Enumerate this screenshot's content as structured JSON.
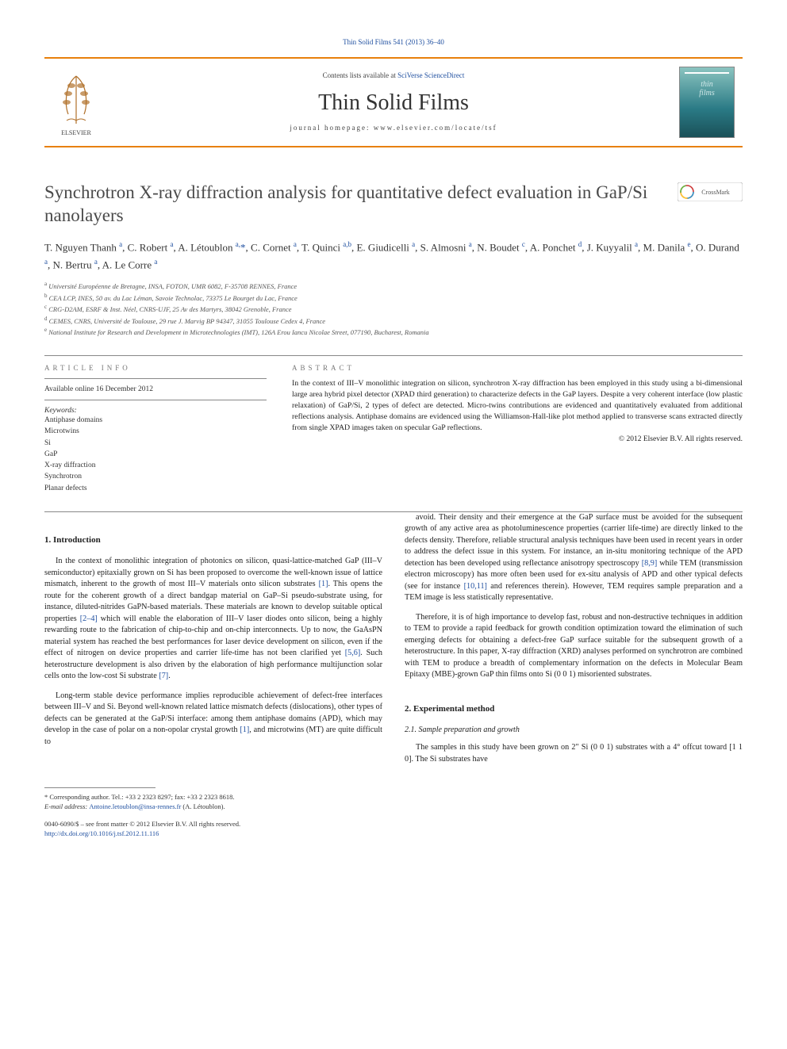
{
  "header": {
    "top_link": "Thin Solid Films 541 (2013) 36–40",
    "contents_prefix": "Contents lists available at ",
    "contents_link": "SciVerse ScienceDirect",
    "journal_title": "Thin Solid Films",
    "homepage_label": "journal homepage: www.elsevier.com/locate/tsf"
  },
  "article": {
    "title": "Synchrotron X-ray diffraction analysis for quantitative defect evaluation in GaP/Si nanolayers",
    "crossmark_label": "CrossMark"
  },
  "authors_html": "T. Nguyen Thanh <sup>a</sup>, C. Robert <sup>a</sup>, A. Létoublon <sup>a,</sup><span class='star'>*</span>, C. Cornet <sup>a</sup>, T. Quinci <sup>a,b</sup>, E. Giudicelli <sup>a</sup>, S. Almosni <sup>a</sup>, N. Boudet <sup>c</sup>, A. Ponchet <sup>d</sup>, J. Kuyyalil <sup>a</sup>, M. Danila <sup>e</sup>, O. Durand <sup>a</sup>, N. Bertru <sup>a</sup>, A. Le Corre <sup>a</sup>",
  "affiliations": [
    {
      "sup": "a",
      "text": "Université Européenne de Bretagne, INSA, FOTON, UMR 6082, F-35708 RENNES, France"
    },
    {
      "sup": "b",
      "text": "CEA LCP, INES, 50 av. du Lac Léman, Savoie Technolac, 73375 Le Bourget du Lac, France"
    },
    {
      "sup": "c",
      "text": "CRG-D2AM, ESRF & Inst. Néel, CNRS-UJF, 25 Av des Martyrs, 38042 Grenoble, France"
    },
    {
      "sup": "d",
      "text": "CEMES, CNRS, Université de Toulouse, 29 rue J. Marvig BP 94347, 31055 Toulouse Cedex 4, France"
    },
    {
      "sup": "e",
      "text": "National Institute for Research and Development in Microtechnologies (IMT), 126A Erou Iancu Nicolae Street, 077190, Bucharest, Romania"
    }
  ],
  "info": {
    "article_info_head": "ARTICLE INFO",
    "available": "Available online 16 December 2012",
    "keywords_head": "Keywords:",
    "keywords": [
      "Antiphase domains",
      "Microtwins",
      "Si",
      "GaP",
      "X-ray diffraction",
      "Synchrotron",
      "Planar defects"
    ]
  },
  "abstract": {
    "head": "ABSTRACT",
    "body": "In the context of III–V monolithic integration on silicon, synchrotron X-ray diffraction has been employed in this study using a bi-dimensional large area hybrid pixel detector (XPAD third generation) to characterize defects in the GaP layers. Despite a very coherent interface (low plastic relaxation) of GaP/Si, 2 types of defect are detected. Micro-twins contributions are evidenced and quantitatively evaluated from additional reflections analysis. Antiphase domains are evidenced using the Williamson-Hall-like plot method applied to transverse scans extracted directly from single XPAD images taken on specular GaP reflections.",
    "copyright": "© 2012 Elsevier B.V. All rights reserved."
  },
  "sections": {
    "intro_head": "1. Introduction",
    "intro_p1": "In the context of monolithic integration of photonics on silicon, quasi-lattice-matched GaP (III–V semiconductor) epitaxially grown on Si has been proposed to overcome the well-known issue of lattice mismatch, inherent to the growth of most III–V materials onto silicon substrates [1]. This opens the route for the coherent growth of a direct bandgap material on GaP–Si pseudo-substrate using, for instance, diluted-nitrides GaPN-based materials. These materials are known to develop suitable optical properties [2–4] which will enable the elaboration of III–V laser diodes onto silicon, being a highly rewarding route to the fabrication of chip-to-chip and on-chip interconnects. Up to now, the GaAsPN material system has reached the best performances for laser device development on silicon, even if the effect of nitrogen on device properties and carrier life-time has not been clarified yet [5,6]. Such heterostructure development is also driven by the elaboration of high performance multijunction solar cells onto the low-cost Si substrate [7].",
    "intro_p2": "Long-term stable device performance implies reproducible achievement of defect-free interfaces between III–V and Si. Beyond well-known related lattice mismatch defects (dislocations), other types of defects can be generated at the GaP/Si interface: among them antiphase domains (APD), which may develop in the case of polar on a non-opolar crystal growth [1], and microtwins (MT) are quite difficult to",
    "intro_p3": "avoid. Their density and their emergence at the GaP surface must be avoided for the subsequent growth of any active area as photoluminescence properties (carrier life-time) are directly linked to the defects density. Therefore, reliable structural analysis techniques have been used in recent years in order to address the defect issue in this system. For instance, an in-situ monitoring technique of the APD detection has been developed using reflectance anisotropy spectroscopy [8,9] while TEM (transmission electron microscopy) has more often been used for ex-situ analysis of APD and other typical defects (see for instance [10,11] and references therein). However, TEM requires sample preparation and a TEM image is less statistically representative.",
    "intro_p4": "Therefore, it is of high importance to develop fast, robust and non-destructive techniques in addition to TEM to provide a rapid feedback for growth condition optimization toward the elimination of such emerging defects for obtaining a defect-free GaP surface suitable for the subsequent growth of a heterostructure. In this paper, X-ray diffraction (XRD) analyses performed on synchrotron are combined with TEM to produce a breadth of complementary information on the defects in Molecular Beam Epitaxy (MBE)-grown GaP thin films onto Si (0 0 1) misoriented substrates.",
    "exp_head": "2. Experimental method",
    "exp_sub": "2.1. Sample preparation and growth",
    "exp_p1": "The samples in this study have been grown on 2\" Si (0 0 1) substrates with a 4° offcut toward [1 1 0]. The Si substrates have"
  },
  "footnote": {
    "corresponding": "* Corresponding author. Tel.: +33 2 2323 8297; fax: +33 2 2323 8618.",
    "email_label": "E-mail address: ",
    "email": "Antoine.letoublon@insa-rennes.fr",
    "email_suffix": " (A. Létoublon)."
  },
  "bottom": {
    "issn": "0040-6090/$ – see front matter © 2012 Elsevier B.V. All rights reserved.",
    "doi": "http://dx.doi.org/10.1016/j.tsf.2012.11.116"
  },
  "colors": {
    "link": "#2050a0",
    "rule": "#e8800c"
  }
}
